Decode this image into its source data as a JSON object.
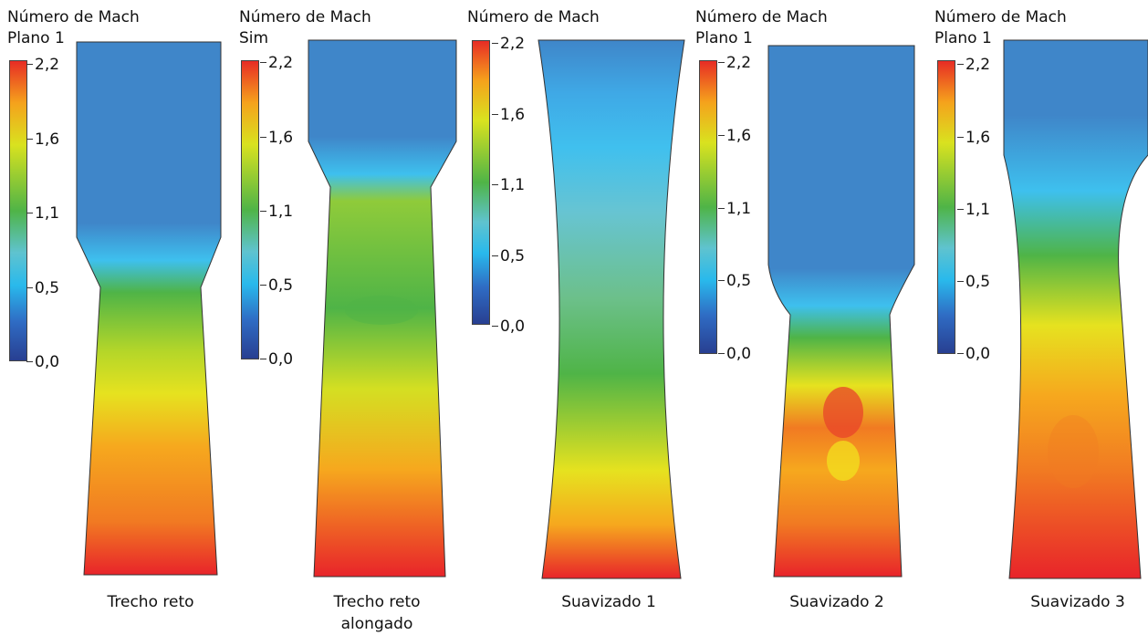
{
  "panels": [
    {
      "title": "Número de Mach",
      "subtitle": "Plano 1",
      "caption": "Trecho reto"
    },
    {
      "title": "Número de Mach",
      "subtitle": "Sim",
      "caption": "Trecho reto alongado"
    },
    {
      "title": "Número de Mach",
      "subtitle": "",
      "caption": "Suavizado 1"
    },
    {
      "title": "Número de Mach",
      "subtitle": "Plano 1",
      "caption": "Suavizado 2"
    },
    {
      "title": "Número de Mach",
      "subtitle": "Plano 1",
      "caption": "Suavizado 3"
    }
  ],
  "colorbar": {
    "ticks": [
      "2,2",
      "1,6",
      "1,1",
      "0,5",
      "0,0"
    ],
    "colors": [
      "#283f91",
      "#2f6cc4",
      "#29b9ec",
      "#5fc3cf",
      "#4fb447",
      "#d9e21f",
      "#f5a21c",
      "#e72c25"
    ]
  }
}
